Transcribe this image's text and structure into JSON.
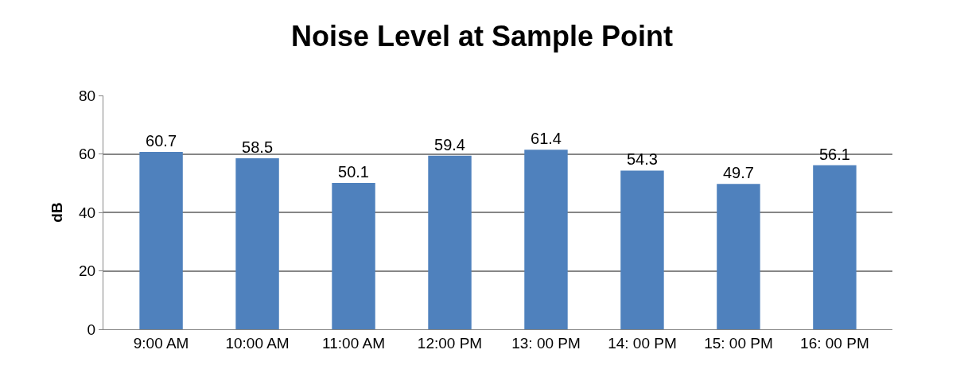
{
  "chart_data": {
    "type": "bar",
    "title": "Noise Level at Sample Point",
    "ylabel": "dB",
    "categories": [
      "9:00 AM",
      "10:00 AM",
      "11:00 AM",
      "12:00 PM",
      "13: 00 PM",
      "14: 00 PM",
      "15: 00 PM",
      "16: 00 PM"
    ],
    "values": [
      60.7,
      58.5,
      50.1,
      59.4,
      61.4,
      54.3,
      49.7,
      56.1
    ],
    "color": "#4f81bd",
    "ylim": [
      0,
      80
    ],
    "yticks": [
      0,
      20,
      40,
      60,
      80
    ],
    "grid": "y",
    "data_labels": true,
    "legend": false
  }
}
